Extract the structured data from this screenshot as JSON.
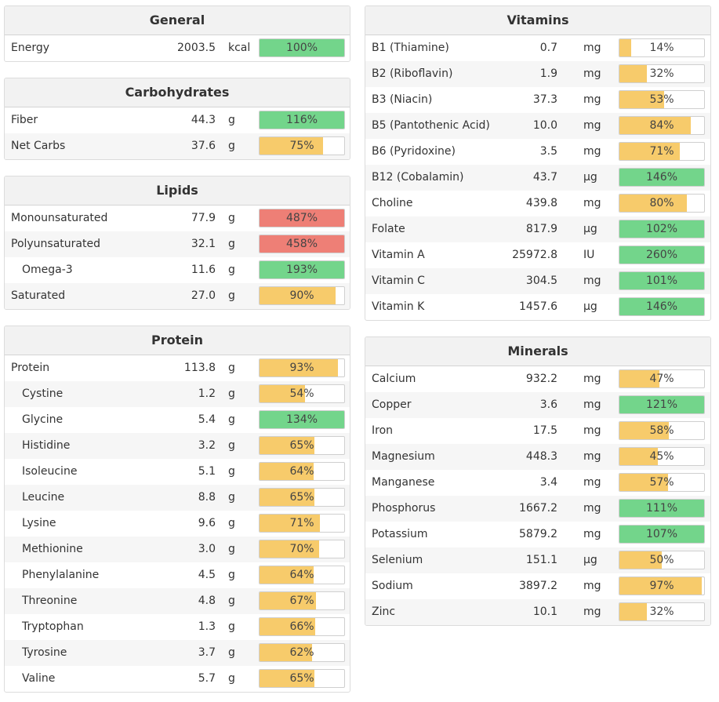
{
  "colors": {
    "over": "#ee7f76",
    "full": "#73d58b",
    "partial": "#f7cb6b",
    "panel_head": "#f2f2f2"
  },
  "left": [
    {
      "title": "General",
      "rows": [
        {
          "name": "Energy",
          "amount": "2003.5",
          "unit": "kcal",
          "pct": 100,
          "label": "100%"
        }
      ]
    },
    {
      "title": "Carbohydrates",
      "rows": [
        {
          "name": "Fiber",
          "amount": "44.3",
          "unit": "g",
          "pct": 116,
          "label": "116%"
        },
        {
          "name": "Net Carbs",
          "amount": "37.6",
          "unit": "g",
          "pct": 75,
          "label": "75%"
        }
      ]
    },
    {
      "title": "Lipids",
      "rows": [
        {
          "name": "Monounsaturated",
          "amount": "77.9",
          "unit": "g",
          "pct": 487,
          "label": "487%",
          "over": true
        },
        {
          "name": "Polyunsaturated",
          "amount": "32.1",
          "unit": "g",
          "pct": 458,
          "label": "458%",
          "over": true
        },
        {
          "name": "Omega-3",
          "amount": "11.6",
          "unit": "g",
          "pct": 193,
          "label": "193%",
          "indent": true
        },
        {
          "name": "Saturated",
          "amount": "27.0",
          "unit": "g",
          "pct": 90,
          "label": "90%"
        }
      ]
    },
    {
      "title": "Protein",
      "rows": [
        {
          "name": "Protein",
          "amount": "113.8",
          "unit": "g",
          "pct": 93,
          "label": "93%"
        },
        {
          "name": "Cystine",
          "amount": "1.2",
          "unit": "g",
          "pct": 54,
          "label": "54%",
          "indent": true
        },
        {
          "name": "Glycine",
          "amount": "5.4",
          "unit": "g",
          "pct": 134,
          "label": "134%",
          "indent": true
        },
        {
          "name": "Histidine",
          "amount": "3.2",
          "unit": "g",
          "pct": 65,
          "label": "65%",
          "indent": true
        },
        {
          "name": "Isoleucine",
          "amount": "5.1",
          "unit": "g",
          "pct": 64,
          "label": "64%",
          "indent": true
        },
        {
          "name": "Leucine",
          "amount": "8.8",
          "unit": "g",
          "pct": 65,
          "label": "65%",
          "indent": true
        },
        {
          "name": "Lysine",
          "amount": "9.6",
          "unit": "g",
          "pct": 71,
          "label": "71%",
          "indent": true
        },
        {
          "name": "Methionine",
          "amount": "3.0",
          "unit": "g",
          "pct": 70,
          "label": "70%",
          "indent": true
        },
        {
          "name": "Phenylalanine",
          "amount": "4.5",
          "unit": "g",
          "pct": 64,
          "label": "64%",
          "indent": true
        },
        {
          "name": "Threonine",
          "amount": "4.8",
          "unit": "g",
          "pct": 67,
          "label": "67%",
          "indent": true
        },
        {
          "name": "Tryptophan",
          "amount": "1.3",
          "unit": "g",
          "pct": 66,
          "label": "66%",
          "indent": true
        },
        {
          "name": "Tyrosine",
          "amount": "3.7",
          "unit": "g",
          "pct": 62,
          "label": "62%",
          "indent": true
        },
        {
          "name": "Valine",
          "amount": "5.7",
          "unit": "g",
          "pct": 65,
          "label": "65%",
          "indent": true
        }
      ]
    }
  ],
  "right": [
    {
      "title": "Vitamins",
      "rows": [
        {
          "name": "B1 (Thiamine)",
          "amount": "0.7",
          "unit": "mg",
          "pct": 14,
          "label": "14%"
        },
        {
          "name": "B2 (Riboflavin)",
          "amount": "1.9",
          "unit": "mg",
          "pct": 32,
          "label": "32%"
        },
        {
          "name": "B3 (Niacin)",
          "amount": "37.3",
          "unit": "mg",
          "pct": 53,
          "label": "53%"
        },
        {
          "name": "B5 (Pantothenic Acid)",
          "amount": "10.0",
          "unit": "mg",
          "pct": 84,
          "label": "84%"
        },
        {
          "name": "B6 (Pyridoxine)",
          "amount": "3.5",
          "unit": "mg",
          "pct": 71,
          "label": "71%"
        },
        {
          "name": "B12 (Cobalamin)",
          "amount": "43.7",
          "unit": "µg",
          "pct": 146,
          "label": "146%"
        },
        {
          "name": "Choline",
          "amount": "439.8",
          "unit": "mg",
          "pct": 80,
          "label": "80%"
        },
        {
          "name": "Folate",
          "amount": "817.9",
          "unit": "µg",
          "pct": 102,
          "label": "102%"
        },
        {
          "name": "Vitamin A",
          "amount": "25972.8",
          "unit": "IU",
          "pct": 260,
          "label": "260%"
        },
        {
          "name": "Vitamin C",
          "amount": "304.5",
          "unit": "mg",
          "pct": 101,
          "label": "101%"
        },
        {
          "name": "Vitamin K",
          "amount": "1457.6",
          "unit": "µg",
          "pct": 146,
          "label": "146%"
        }
      ]
    },
    {
      "title": "Minerals",
      "rows": [
        {
          "name": "Calcium",
          "amount": "932.2",
          "unit": "mg",
          "pct": 47,
          "label": "47%"
        },
        {
          "name": "Copper",
          "amount": "3.6",
          "unit": "mg",
          "pct": 121,
          "label": "121%"
        },
        {
          "name": "Iron",
          "amount": "17.5",
          "unit": "mg",
          "pct": 58,
          "label": "58%"
        },
        {
          "name": "Magnesium",
          "amount": "448.3",
          "unit": "mg",
          "pct": 45,
          "label": "45%"
        },
        {
          "name": "Manganese",
          "amount": "3.4",
          "unit": "mg",
          "pct": 57,
          "label": "57%"
        },
        {
          "name": "Phosphorus",
          "amount": "1667.2",
          "unit": "mg",
          "pct": 111,
          "label": "111%"
        },
        {
          "name": "Potassium",
          "amount": "5879.2",
          "unit": "mg",
          "pct": 107,
          "label": "107%"
        },
        {
          "name": "Selenium",
          "amount": "151.1",
          "unit": "µg",
          "pct": 50,
          "label": "50%"
        },
        {
          "name": "Sodium",
          "amount": "3897.2",
          "unit": "mg",
          "pct": 97,
          "label": "97%"
        },
        {
          "name": "Zinc",
          "amount": "10.1",
          "unit": "mg",
          "pct": 32,
          "label": "32%"
        }
      ]
    }
  ]
}
